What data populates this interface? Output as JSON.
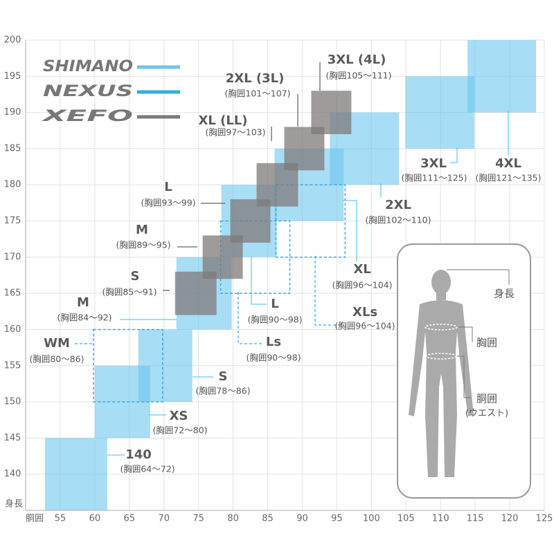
{
  "chart_data": {
    "type": "size-map",
    "x_label": "胴囲",
    "y_label": "身長",
    "xlim": [
      50,
      125
    ],
    "ylim": [
      135,
      200
    ],
    "xticks": [
      55,
      60,
      65,
      70,
      75,
      80,
      85,
      90,
      95,
      100,
      105,
      110,
      115,
      120,
      125
    ],
    "yticks": [
      140,
      145,
      150,
      155,
      160,
      165,
      170,
      175,
      180,
      185,
      190,
      195,
      200
    ],
    "grid": true,
    "series": [
      {
        "name": "SHIMANO",
        "color": "#6cc6ee",
        "style": "solid",
        "sizes": [
          {
            "name": "140",
            "range": "(胸囲64～72)",
            "chest": [
              52.8,
              61.8
            ],
            "height": [
              135,
              145
            ]
          },
          {
            "name": "XS",
            "range": "(胸囲72～80)",
            "chest": [
              60,
              68
            ],
            "height": [
              145,
              155
            ]
          },
          {
            "name": "S",
            "range": "(胸囲78～86)",
            "chest": [
              66.3,
              74.1
            ],
            "height": [
              150,
              160
            ]
          },
          {
            "name": "M",
            "range": "(胸囲84～92)",
            "chest": [
              71.8,
              79.8
            ],
            "height": [
              160,
              170
            ]
          },
          {
            "name": "L",
            "range": "(胸囲90～98)",
            "chest": [
              78.3,
              86.3
            ],
            "height": [
              170,
              180
            ]
          },
          {
            "name": "XL",
            "range": "(胸囲96～104)",
            "chest": [
              86,
              96
            ],
            "height": [
              175,
              185
            ]
          },
          {
            "name": "2XL",
            "range": "(胸囲102～110)",
            "chest": [
              94,
              104
            ],
            "height": [
              180,
              190
            ]
          },
          {
            "name": "3XL",
            "range": "(胸囲111～125)",
            "chest": [
              104.9,
              114.9
            ],
            "height": [
              185,
              195
            ]
          },
          {
            "name": "4XL",
            "range": "(胸囲121～135)",
            "chest": [
              113.9,
              123.8
            ],
            "height": [
              190,
              200
            ]
          }
        ]
      },
      {
        "name": "NEXUS",
        "color": "#35ace0",
        "style": "dashed",
        "sizes": [
          {
            "name": "WM",
            "range": "(胸囲80～86)",
            "chest": [
              59.8,
              69.8
            ],
            "height": [
              150,
              160
            ]
          },
          {
            "name": "Ls",
            "range": "(胸囲90～98)",
            "chest": [
              78.2,
              88.2
            ],
            "height": [
              165,
              175
            ]
          },
          {
            "name": "XLs",
            "range": "(胸囲96～104)",
            "chest": [
              86.2,
              96.2
            ],
            "height": [
              170,
              180
            ]
          }
        ]
      },
      {
        "name": "XEFO",
        "color": "#7f7a7a",
        "style": "gray",
        "sizes": [
          {
            "name": "S",
            "range": "(胸囲85～91)",
            "chest": [
              71.6,
              77.6
            ],
            "height": [
              162,
              168
            ]
          },
          {
            "name": "M",
            "range": "(胸囲89～95)",
            "chest": [
              75.6,
              81.4
            ],
            "height": [
              167,
              173
            ]
          },
          {
            "name": "L",
            "range": "(胸囲93～99)",
            "chest": [
              79.6,
              85.4
            ],
            "height": [
              172,
              178
            ]
          },
          {
            "name": "XL (LL)",
            "range": "(胸囲97～103)",
            "chest": [
              83.4,
              89.4
            ],
            "height": [
              177,
              183
            ]
          },
          {
            "name": "2XL (3L)",
            "range": "(胸囲101～107)",
            "chest": [
              87.4,
              93.2
            ],
            "height": [
              182,
              188
            ]
          },
          {
            "name": "3XL (4L)",
            "range": "(胸囲105～111)",
            "chest": [
              91.3,
              97.1
            ],
            "height": [
              187,
              193
            ]
          }
        ]
      }
    ],
    "figure_labels": [
      "身長",
      "胸囲",
      "胴囲",
      "(ウエスト)"
    ]
  }
}
